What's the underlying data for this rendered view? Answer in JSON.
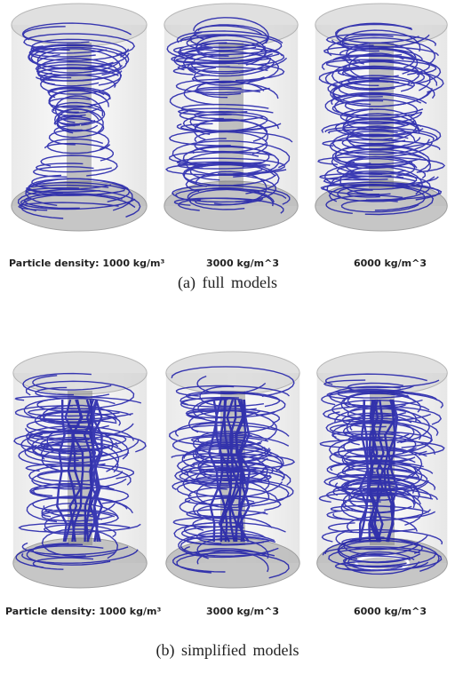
{
  "panels": [
    {
      "caption": "(a)  full  models",
      "labels": [
        "Particle density: 1000  kg/m³",
        "3000  kg/m^3",
        "6000  kg/m^3"
      ],
      "model_variant": "full",
      "streamline_color": "#1a1aa8"
    },
    {
      "caption": "(b)  simplified  models",
      "labels": [
        "Particle density: 1000  kg/m³",
        "3000  kg/m^3",
        "6000  kg/m^3"
      ],
      "model_variant": "simplified",
      "streamline_color": "#1a1aa8"
    }
  ]
}
